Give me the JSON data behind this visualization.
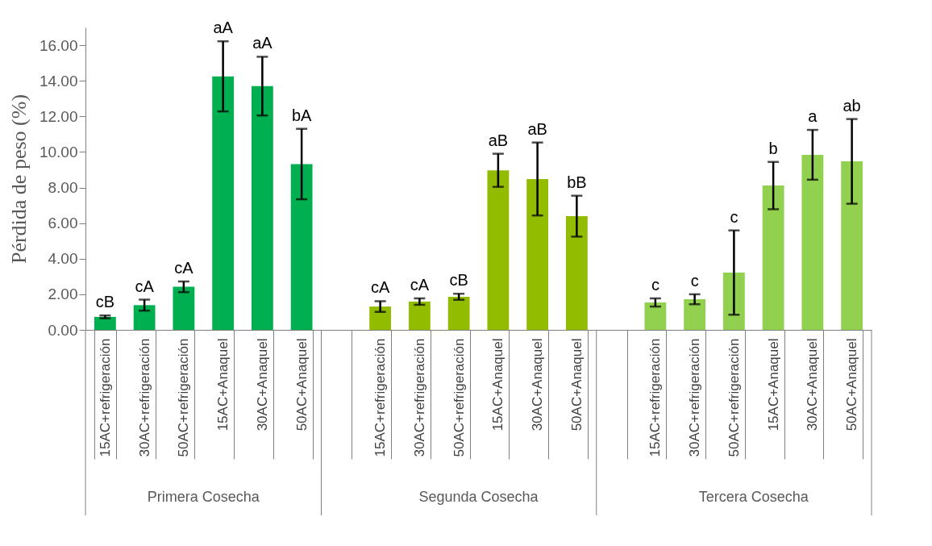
{
  "chart_data": {
    "type": "bar",
    "ylabel": "Pérdida de peso  (%)",
    "categories": [
      "15AC+refrigeración",
      "30AC+refrigeración",
      "50AC+refrigeración",
      "15AC+Anaquel",
      "30AC+Anaquel",
      "50AC+Anaquel",
      null,
      "15AC+refrigeración",
      "30AC+refrigeración",
      "50AC+refrigeración",
      "15AC+Anaquel",
      "30AC+Anaquel",
      "50AC+Anaquel",
      null,
      "15AC+refrigeración",
      "30AC+refrigeración",
      "50AC+refrigeración",
      "15AC+Anaquel",
      "30AC+Anaquel",
      "50AC+Anaquel"
    ],
    "values": [
      0.73,
      1.39,
      2.42,
      14.25,
      13.7,
      9.32,
      null,
      1.31,
      1.59,
      1.86,
      8.97,
      8.48,
      6.39,
      null,
      1.54,
      1.72,
      3.22,
      8.11,
      9.84,
      9.47
    ],
    "errors": [
      0.08,
      0.31,
      0.3,
      1.97,
      1.65,
      1.98,
      null,
      0.3,
      0.18,
      0.17,
      0.93,
      2.05,
      1.15,
      null,
      0.23,
      0.28,
      2.37,
      1.33,
      1.4,
      2.38
    ],
    "value_labels": [
      "cB",
      "cA",
      "cA",
      "aA",
      "aA",
      "bA",
      null,
      "cA",
      "cA",
      "cB",
      "aB",
      "aB",
      "bB",
      null,
      "c",
      "c",
      "c",
      "b",
      "a",
      "ab"
    ],
    "colors": [
      "#00b050",
      "#00b050",
      "#00b050",
      "#00b050",
      "#00b050",
      "#00b050",
      "#ffffff",
      "#92bc00",
      "#92bc00",
      "#92bc00",
      "#92bc00",
      "#92bc00",
      "#92bc00",
      "#ffffff",
      "#92d050",
      "#92d050",
      "#92d050",
      "#92d050",
      "#92d050",
      "#92d050"
    ],
    "annotations": [
      "Primera Cosecha",
      "Segunda Cosecha",
      "Tercera Cosecha"
    ],
    "ylim": [
      0,
      17
    ],
    "yticks": [
      {
        "value": 0,
        "label": "0.00"
      },
      {
        "value": 2,
        "label": "2.00"
      },
      {
        "value": 4,
        "label": "4.00"
      },
      {
        "value": 6,
        "label": "6.00"
      },
      {
        "value": 8,
        "label": "8.00"
      },
      {
        "value": 10,
        "label": "10.00"
      },
      {
        "value": 12,
        "label": "12.00"
      },
      {
        "value": 14,
        "label": "14.00"
      },
      {
        "value": 16,
        "label": "16.00"
      }
    ],
    "grid": false
  }
}
